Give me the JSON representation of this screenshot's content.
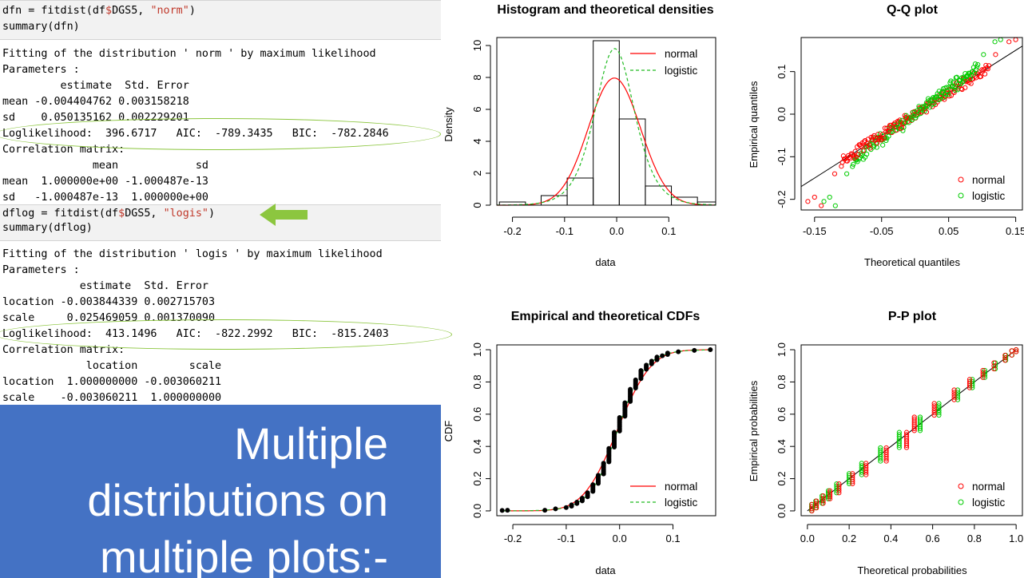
{
  "console": {
    "cmd1": {
      "line1_prefix": "dfn = fitdist(df",
      "line1_dollar": "$",
      "line1_mid": "DGS5, ",
      "line1_str": "\"norm\"",
      "line1_suffix": ")",
      "line2": "summary(dfn)"
    },
    "out1": [
      "Fitting of the distribution ' norm ' by maximum likelihood",
      "Parameters :",
      "         estimate  Std. Error",
      "mean -0.004404762 0.003158218",
      "sd    0.050135162 0.002229201",
      "Loglikelihood:  396.6717   AIC:  -789.3435   BIC:  -782.2846",
      "Correlation matrix:",
      "              mean            sd",
      "mean  1.000000e+00 -1.000487e-13",
      "sd   -1.000487e-13  1.000000e+00"
    ],
    "cmd2": {
      "line1_prefix": "dflog = fitdist(df",
      "line1_dollar": "$",
      "line1_mid": "DGS5, ",
      "line1_str": "\"logis\"",
      "line1_suffix": ")",
      "line2": "summary(dflog)"
    },
    "out2": [
      "Fitting of the distribution ' logis ' by maximum likelihood",
      "Parameters :",
      "            estimate  Std. Error",
      "location -0.003844339 0.002715703",
      "scale     0.025469059 0.001370090",
      "Loglikelihood:  413.1496   AIC:  -822.2992   BIC:  -815.2403",
      "Correlation matrix:",
      "             location        scale",
      "location  1.000000000 -0.003060211",
      "scale    -0.003060211  1.000000000"
    ]
  },
  "banner": {
    "line1": "Multiple",
    "line2": "distributions on",
    "line3": "multiple plots:-"
  },
  "colors": {
    "normal": "#ff0000",
    "logistic": "#00cc00",
    "highlight": "#8cc63f",
    "banner": "#4472c4",
    "string": "#c0392b"
  },
  "legend": {
    "normal": "normal",
    "logistic": "logistic"
  },
  "chart_data": [
    {
      "type": "bar",
      "title": "Histogram and theoretical densities",
      "xlabel": "data",
      "ylabel": "Density",
      "xlim": [
        -0.23,
        0.19
      ],
      "ylim": [
        0,
        10.5
      ],
      "xticks": [
        "-0.2",
        "-0.1",
        "0.0",
        "0.1"
      ],
      "yticks": [
        "0",
        "2",
        "4",
        "6",
        "8",
        "10"
      ],
      "bins": [
        {
          "from": -0.225,
          "to": -0.175,
          "density": 0.2
        },
        {
          "from": -0.175,
          "to": -0.145,
          "density": 0.0
        },
        {
          "from": -0.145,
          "to": -0.095,
          "density": 0.6
        },
        {
          "from": -0.095,
          "to": -0.045,
          "density": 1.7
        },
        {
          "from": -0.045,
          "to": 0.005,
          "density": 10.3
        },
        {
          "from": 0.005,
          "to": 0.055,
          "density": 5.4
        },
        {
          "from": 0.055,
          "to": 0.105,
          "density": 1.2
        },
        {
          "from": 0.105,
          "to": 0.155,
          "density": 0.5
        },
        {
          "from": 0.155,
          "to": 0.19,
          "density": 0.2
        }
      ],
      "legend": [
        "normal",
        "logistic"
      ],
      "legend_position": "top-right"
    },
    {
      "type": "scatter",
      "title": "Q-Q plot",
      "xlabel": "Theoretical quantiles",
      "ylabel": "Empirical quantiles",
      "xlim": [
        -0.17,
        0.16
      ],
      "ylim": [
        -0.225,
        0.18
      ],
      "xticks": [
        "-0.15",
        "-0.05",
        "0.05",
        "0.15"
      ],
      "yticks": [
        "-0.2",
        "-0.1",
        "0.0",
        "0.1"
      ],
      "reference_line": [
        [
          -0.17,
          -0.17
        ],
        [
          0.16,
          0.16
        ]
      ],
      "legend": [
        "normal",
        "logistic"
      ],
      "legend_position": "bottom-right"
    },
    {
      "type": "line",
      "title": "Empirical and theoretical CDFs",
      "xlabel": "data",
      "ylabel": "CDF",
      "xlim": [
        -0.23,
        0.18
      ],
      "ylim": [
        0,
        1
      ],
      "xticks": [
        "-0.2",
        "-0.1",
        "0.0",
        "0.1"
      ],
      "yticks": [
        "0.0",
        "0.2",
        "0.4",
        "0.6",
        "0.8",
        "1.0"
      ],
      "legend": [
        "normal",
        "logistic"
      ],
      "legend_position": "bottom-right"
    },
    {
      "type": "scatter",
      "title": "P-P plot",
      "xlabel": "Theoretical probabilities",
      "ylabel": "Empirical probabilities",
      "xlim": [
        0,
        1
      ],
      "ylim": [
        0,
        1
      ],
      "xticks": [
        "0.0",
        "0.2",
        "0.4",
        "0.6",
        "0.8",
        "1.0"
      ],
      "yticks": [
        "0.0",
        "0.2",
        "0.4",
        "0.6",
        "0.8",
        "1.0"
      ],
      "reference_line": [
        [
          0,
          0
        ],
        [
          1,
          1
        ]
      ],
      "legend": [
        "normal",
        "logistic"
      ],
      "legend_position": "bottom-right"
    }
  ]
}
